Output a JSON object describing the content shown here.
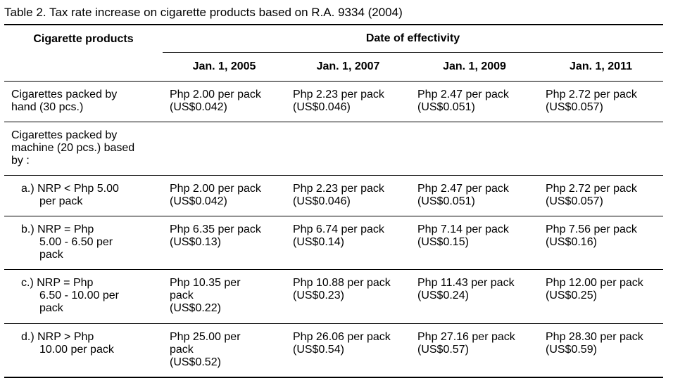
{
  "caption": "Table 2. Tax rate increase on cigarette products based on R.A. 9334 (2004)",
  "headers": {
    "product_col": "Cigarette products",
    "group": "Date of effectivity",
    "dates": [
      "Jan. 1, 2005",
      "Jan. 1, 2007",
      "Jan. 1, 2009",
      "Jan. 1, 2011"
    ]
  },
  "rows": [
    {
      "label_lines": [
        "Cigarettes packed by",
        "hand (30 pcs.)"
      ],
      "cells": [
        [
          "Php 2.00 per pack",
          "(US$0.042)"
        ],
        [
          "Php 2.23 per pack",
          "(US$0.046)"
        ],
        [
          "Php 2.47 per pack",
          "(US$0.051)"
        ],
        [
          "Php 2.72 per pack",
          "(US$0.057)"
        ]
      ]
    },
    {
      "label_lines": [
        "Cigarettes packed by",
        "machine (20 pcs.) based",
        "by :"
      ],
      "cells": [
        [],
        [],
        [],
        []
      ]
    },
    {
      "label_lines": [
        "a.) NRP < Php 5.00",
        "per pack"
      ],
      "cells": [
        [
          "Php 2.00 per pack",
          "(US$0.042)"
        ],
        [
          "Php 2.23 per pack",
          "(US$0.046)"
        ],
        [
          "Php 2.47 per pack",
          "(US$0.051)"
        ],
        [
          "Php 2.72 per pack",
          "(US$0.057)"
        ]
      ]
    },
    {
      "label_lines": [
        "b.) NRP = Php",
        "5.00 - 6.50 per",
        "pack"
      ],
      "cells": [
        [
          "Php 6.35 per pack",
          "(US$0.13)"
        ],
        [
          "Php 6.74 per pack",
          "(US$0.14)"
        ],
        [
          "Php 7.14 per pack",
          "(US$0.15)"
        ],
        [
          "Php 7.56 per pack",
          "(US$0.16)"
        ]
      ]
    },
    {
      "label_lines": [
        "c.) NRP = Php",
        "6.50 - 10.00 per",
        "pack"
      ],
      "cells": [
        [
          "Php 10.35 per",
          "pack",
          "(US$0.22)"
        ],
        [
          "Php 10.88 per pack",
          "(US$0.23)"
        ],
        [
          "Php 11.43 per pack",
          "(US$0.24)"
        ],
        [
          "Php 12.00 per pack",
          "(US$0.25)"
        ]
      ]
    },
    {
      "label_lines": [
        "d.) NRP > Php",
        "10.00 per pack"
      ],
      "cells": [
        [
          "Php 25.00 per",
          "pack",
          "(US$0.52)"
        ],
        [
          "Php 26.06 per pack",
          "(US$0.54)"
        ],
        [
          "Php 27.16 per pack",
          "(US$0.57)"
        ],
        [
          "Php 28.30 per pack",
          "(US$0.59)"
        ]
      ]
    }
  ]
}
